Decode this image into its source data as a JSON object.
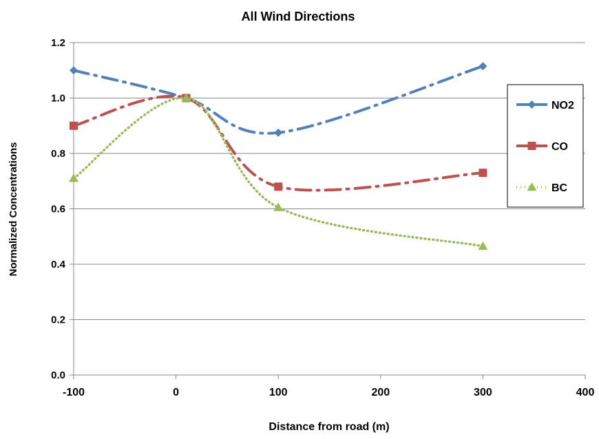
{
  "chart_data": {
    "type": "line",
    "title": "All Wind Directions",
    "xlabel": "Distance from road (m)",
    "ylabel": "Normalized Concentrations",
    "xlim": [
      -100,
      400
    ],
    "ylim": [
      0,
      1.2
    ],
    "x_ticks": [
      "-100",
      "0",
      "100",
      "200",
      "300",
      "400"
    ],
    "y_ticks": [
      "0.0",
      "0.2",
      "0.4",
      "0.6",
      "0.8",
      "1.0",
      "1.2"
    ],
    "grid": "horizontal",
    "legend_position": "right",
    "series": [
      {
        "name": "NO2",
        "color": "#4F81BD",
        "marker": "diamond",
        "line_style": "dash-dot",
        "x": [
          -100,
          10,
          100,
          300
        ],
        "y": [
          1.1,
          1.0,
          0.875,
          1.115
        ]
      },
      {
        "name": "CO",
        "color": "#C0504D",
        "marker": "square",
        "line_style": "dash-dot",
        "x": [
          -100,
          10,
          100,
          300
        ],
        "y": [
          0.9,
          1.0,
          0.68,
          0.73
        ]
      },
      {
        "name": "BC",
        "color": "#9BBB59",
        "marker": "triangle",
        "line_style": "dotted",
        "x": [
          -100,
          10,
          100,
          300
        ],
        "y": [
          0.71,
          1.0,
          0.605,
          0.465
        ]
      }
    ]
  }
}
